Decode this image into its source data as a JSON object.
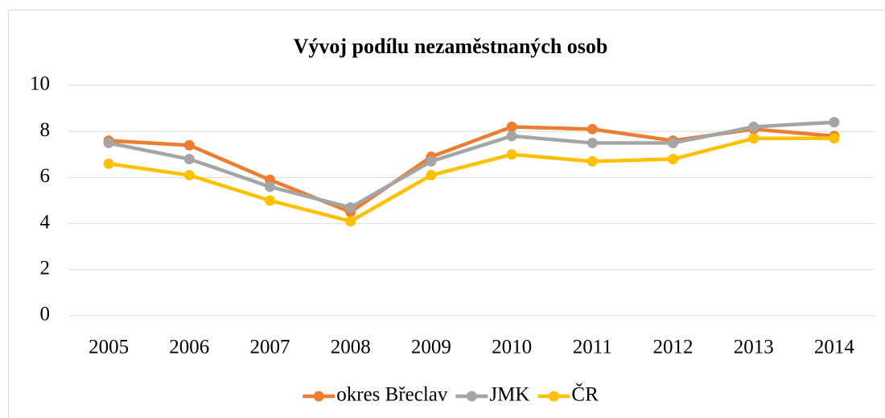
{
  "chart_data": {
    "type": "line",
    "title": "Vývoj podílu nezaměstnaných osob",
    "categories": [
      "2005",
      "2006",
      "2007",
      "2008",
      "2009",
      "2010",
      "2011",
      "2012",
      "2013",
      "2014"
    ],
    "series": [
      {
        "name": "okres Břeclav",
        "color": "#ed7d31",
        "values": [
          7.6,
          7.4,
          5.9,
          4.5,
          6.9,
          8.2,
          8.1,
          7.6,
          8.1,
          7.8
        ]
      },
      {
        "name": "JMK",
        "color": "#a5a5a5",
        "values": [
          7.5,
          6.8,
          5.6,
          4.7,
          6.7,
          7.8,
          7.5,
          7.5,
          8.2,
          8.4
        ]
      },
      {
        "name": "ČR",
        "color": "#ffc000",
        "values": [
          6.6,
          6.1,
          5.0,
          4.1,
          6.1,
          7.0,
          6.7,
          6.8,
          7.7,
          7.7
        ]
      }
    ],
    "ylim": [
      0,
      10
    ],
    "yticks": [
      0,
      2,
      4,
      6,
      8,
      10
    ],
    "grid": true,
    "legend": "bottom"
  }
}
